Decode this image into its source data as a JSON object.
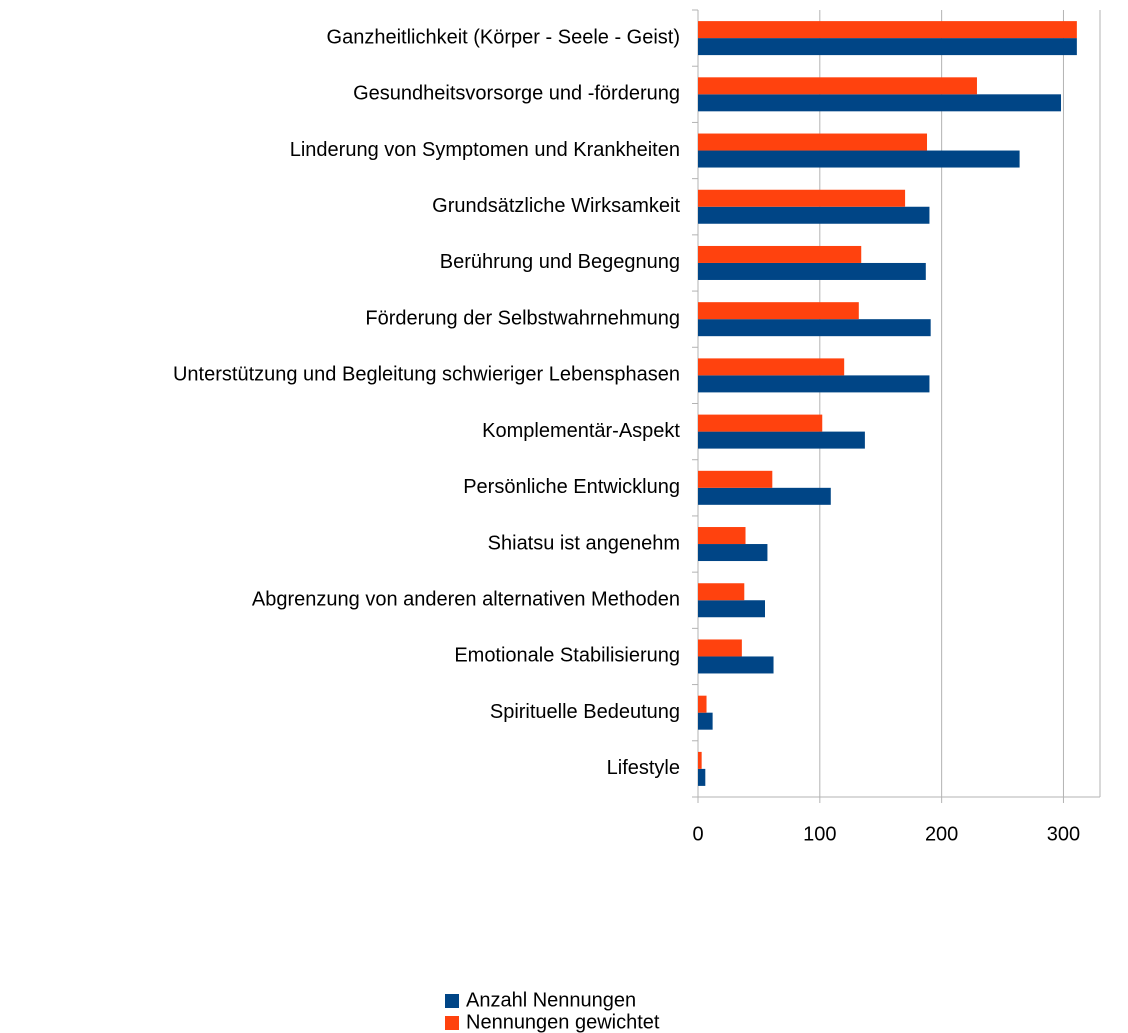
{
  "chart_data": {
    "type": "hbar",
    "categories": [
      "Ganzheitlichkeit (Körper - Seele - Geist)",
      "Gesundheitsvorsorge und -förderung",
      "Linderung von Symptomen und Krankheiten",
      "Grundsätzliche Wirksamkeit",
      "Berührung und Begegnung",
      "Förderung der Selbstwahrnehmung",
      "Unterstützung und Begleitung schwieriger Lebensphasen",
      "Komplementär-Aspekt",
      "Persönliche Entwicklung",
      "Shiatsu ist angenehm",
      "Abgrenzung von anderen alternativen Methoden",
      "Emotionale Stabilisierung",
      "Spirituelle Bedeutung",
      "Lifestyle"
    ],
    "series": [
      {
        "name": "Anzahl Nennungen",
        "color": "#004586",
        "values": [
          311,
          298,
          264,
          190,
          187,
          191,
          190,
          137,
          109,
          57,
          55,
          62,
          12,
          6
        ]
      },
      {
        "name": "Nennungen gewichtet",
        "color": "#ff420e",
        "values": [
          311,
          229,
          188,
          170,
          134,
          132,
          120,
          102,
          61,
          39,
          38,
          36,
          7,
          3
        ]
      }
    ],
    "xlim": [
      0,
      330
    ],
    "xticks": [
      0,
      100,
      200,
      300
    ],
    "grid": true
  }
}
